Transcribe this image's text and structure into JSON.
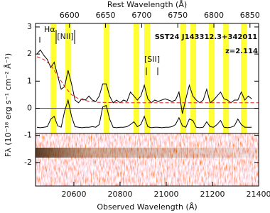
{
  "chart_data": {
    "type": "line",
    "title": "SST24 J143312.3+342011",
    "subtitle": "z=2.114",
    "xlabel": "Observed Wavelength (Å)",
    "x2label": "Rest Wavelength (Å)",
    "ylabel": "Fλ (10⁻¹⁸ erg s⁻¹ cm⁻² Å⁻¹)",
    "annotations": [
      "Hα",
      "[NII]",
      "[SII]"
    ],
    "xlim": [
      20434,
      21400
    ],
    "xticks": [
      20600,
      20800,
      21000,
      21200,
      21400
    ],
    "x2lim": [
      6553,
      6862
    ],
    "x2ticks": [
      6600,
      6650,
      6700,
      6750,
      6800,
      6850
    ],
    "ylim": [
      -2.87,
      3.13
    ],
    "yticks": [
      -2,
      -1,
      0,
      1,
      2,
      3
    ],
    "hline": 0,
    "sky_lines": [
      20511,
      20576,
      20742,
      20871,
      20917,
      21074,
      21117,
      21197,
      21259,
      21336
    ],
    "sky_line_width": 25,
    "sky_color": "#ffff33",
    "series": [
      {
        "color": "#000000",
        "dashed": false,
        "x": [
          20440,
          20455,
          20470,
          20485,
          20500,
          20515,
          20530,
          20545,
          20560,
          20575,
          20590,
          20605,
          20620,
          20635,
          20650,
          20665,
          20680,
          20695,
          20710,
          20725,
          20740,
          20755,
          20770,
          20785,
          20800,
          20815,
          20830,
          20845,
          20860,
          20875,
          20890,
          20905,
          20920,
          20935,
          20950,
          20965,
          20980,
          20995,
          21010,
          21025,
          21040,
          21055,
          21070,
          21085,
          21100,
          21115,
          21130,
          21145,
          21160,
          21175,
          21190,
          21205,
          21220,
          21235,
          21250,
          21265,
          21280,
          21295,
          21310,
          21325,
          21340,
          21355,
          21370
        ],
        "values": [
          2.0,
          2.15,
          1.95,
          1.8,
          1.5,
          1.7,
          1.2,
          0.7,
          0.8,
          1.4,
          0.9,
          0.3,
          0.2,
          0.35,
          0.3,
          0.45,
          0.3,
          0.25,
          0.45,
          0.9,
          0.9,
          0.45,
          0.2,
          0.3,
          0.2,
          0.3,
          0.25,
          0.6,
          0.45,
          0.3,
          0.45,
          0.85,
          0.35,
          0.2,
          0.3,
          0.25,
          0.3,
          0.35,
          0.3,
          0.25,
          0.3,
          0.6,
          -0.2,
          0.35,
          0.85,
          0.45,
          0.3,
          0.2,
          0.3,
          0.7,
          0.2,
          0.3,
          0.45,
          0.6,
          0.35,
          0.3,
          0.2,
          0.3,
          0.3,
          0.6,
          0.3,
          0.45,
          0.35
        ]
      },
      {
        "color": "#dd2222",
        "dashed": true,
        "x": [
          20440,
          20470,
          20500,
          20530,
          20560,
          20590,
          20620,
          20660,
          20700,
          20800,
          20900,
          21000,
          21100,
          21200,
          21300,
          21400
        ],
        "values": [
          1.9,
          1.8,
          1.6,
          1.2,
          0.8,
          0.5,
          0.35,
          0.27,
          0.22,
          0.2,
          0.2,
          0.2,
          0.2,
          0.2,
          0.2,
          0.2
        ]
      },
      {
        "color": "#000000",
        "dashed": false,
        "x": [
          20440,
          20455,
          20470,
          20485,
          20500,
          20515,
          20530,
          20545,
          20560,
          20575,
          20590,
          20605,
          20620,
          20635,
          20650,
          20665,
          20680,
          20695,
          20710,
          20725,
          20740,
          20755,
          20770,
          20785,
          20800,
          20815,
          20830,
          20845,
          20860,
          20875,
          20890,
          20905,
          20920,
          20935,
          20950,
          20965,
          20980,
          20995,
          21010,
          21025,
          21040,
          21055,
          21070,
          21085,
          21100,
          21115,
          21130,
          21145,
          21160,
          21175,
          21190,
          21205,
          21220,
          21235,
          21250,
          21265,
          21280,
          21295,
          21310,
          21325,
          21340,
          21355,
          21370
        ],
        "values": [
          -0.7,
          -0.72,
          -0.7,
          -0.68,
          -0.4,
          -0.3,
          -0.65,
          -0.7,
          -0.1,
          0.3,
          -0.3,
          -0.68,
          -0.7,
          -0.72,
          -0.7,
          -0.7,
          -0.68,
          -0.7,
          -0.6,
          0.05,
          0.1,
          -0.4,
          -0.7,
          -0.72,
          -0.7,
          -0.7,
          -0.68,
          -0.6,
          -0.5,
          -0.68,
          -0.6,
          -0.3,
          -0.68,
          -0.72,
          -0.7,
          -0.7,
          -0.72,
          -0.7,
          -0.7,
          -0.68,
          -0.6,
          -0.35,
          -0.65,
          -0.7,
          -0.4,
          -0.45,
          -0.7,
          -0.72,
          -0.7,
          -0.5,
          -0.68,
          -0.7,
          -0.6,
          -0.45,
          -0.7,
          -0.72,
          -0.7,
          -0.65,
          -0.4,
          -0.6,
          -0.7,
          -0.7,
          -0.7
        ]
      }
    ]
  }
}
